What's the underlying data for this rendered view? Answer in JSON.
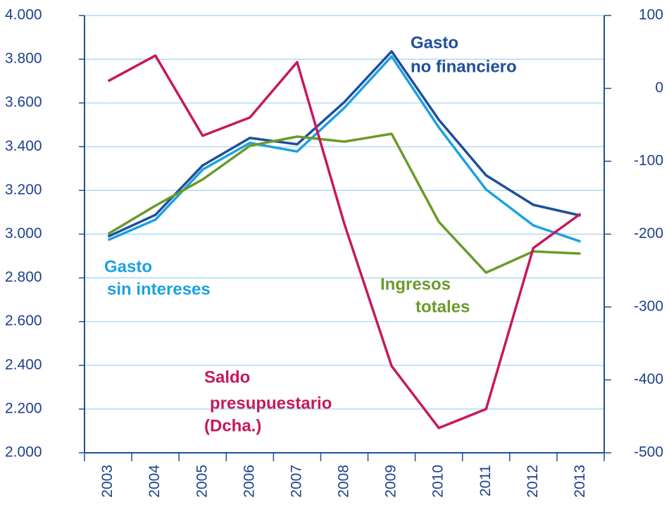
{
  "chart_data": {
    "type": "line",
    "categories": [
      "2003",
      "2004",
      "2005",
      "2006",
      "2007",
      "2008",
      "2009",
      "2010",
      "2011",
      "2012",
      "2013"
    ],
    "series": [
      {
        "name": [
          "Gasto",
          "no financiero"
        ],
        "color": "#1f4e9c",
        "values": [
          2989,
          3088,
          3314,
          3440,
          3411,
          3604,
          3836,
          3523,
          3269,
          3134,
          3085
        ]
      },
      {
        "name": [
          "Gasto",
          "sin intereses"
        ],
        "color": "#1ba1e2",
        "values": [
          2973,
          3066,
          3295,
          3417,
          3378,
          3578,
          3813,
          3488,
          3204,
          3040,
          2966
        ]
      },
      {
        "name": [
          "Ingresos",
          "totales"
        ],
        "color": "#6b9a2a",
        "values": [
          3001,
          3130,
          3250,
          3404,
          3446,
          3423,
          3459,
          3056,
          2824,
          2921,
          2911
        ]
      },
      {
        "name": [
          "Saldo",
          "presupuestario",
          "(Dcha.)"
        ],
        "color": "#c8175d",
        "axis": "y2",
        "values": [
          10,
          45,
          -65,
          -40,
          36,
          -186,
          -381,
          -466,
          -440,
          -219,
          -172
        ]
      }
    ],
    "ylim": [
      2000,
      4000
    ],
    "yticks": [
      {
        "value": 2000,
        "label": "2.000"
      },
      {
        "value": 2200,
        "label": "2.200"
      },
      {
        "value": 2400,
        "label": "2.400"
      },
      {
        "value": 2600,
        "label": "2.600"
      },
      {
        "value": 2800,
        "label": "2.800"
      },
      {
        "value": 3000,
        "label": "3.000"
      },
      {
        "value": 3200,
        "label": "3.200"
      },
      {
        "value": 3400,
        "label": "3.400"
      },
      {
        "value": 3600,
        "label": "3.600"
      },
      {
        "value": 3800,
        "label": "3.800"
      },
      {
        "value": 4000,
        "label": "4.000"
      }
    ],
    "y2lim": [
      -500,
      100
    ],
    "y2ticks": [
      -500,
      -400,
      -300,
      -200,
      -100,
      0,
      100
    ],
    "grid": true
  }
}
